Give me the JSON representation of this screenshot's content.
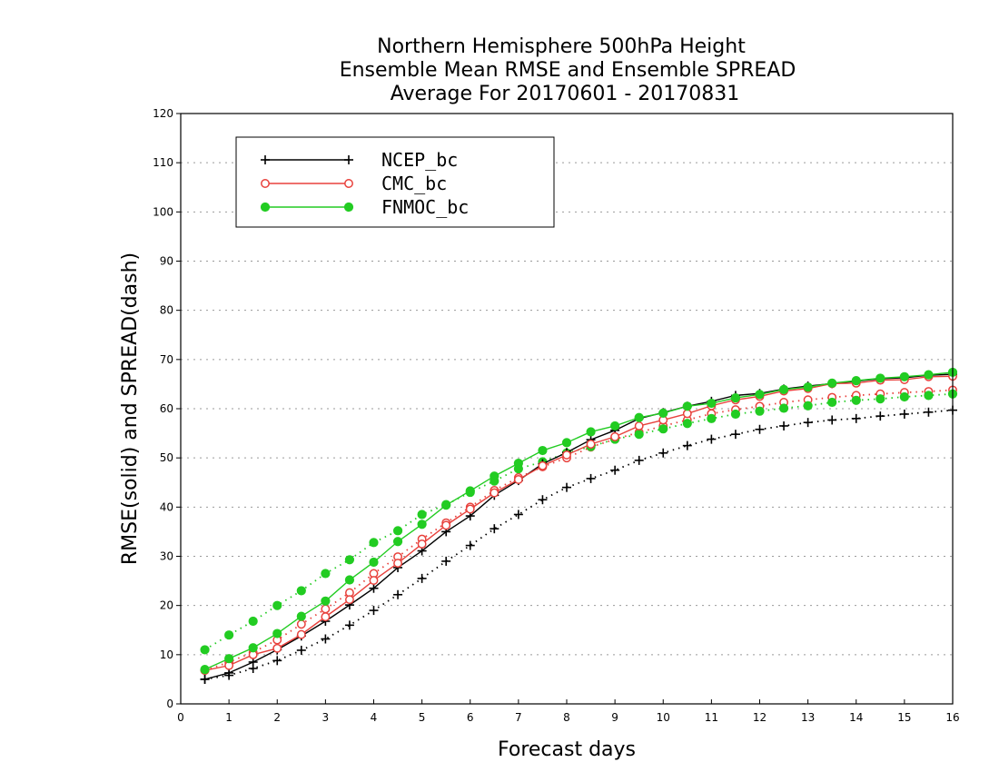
{
  "chart_data": {
    "type": "line",
    "title": [
      "Northern Hemisphere 500hPa Height",
      "Ensemble Mean RMSE and Ensemble SPREAD",
      "Average For 20170601 - 20170831"
    ],
    "xlabel": "Forecast days",
    "ylabel": "RMSE(solid) and SPREAD(dash)",
    "xlim": [
      0,
      16
    ],
    "ylim": [
      0,
      120
    ],
    "xticks": [
      "0",
      "1",
      "2",
      "3",
      "4",
      "5",
      "6",
      "7",
      "8",
      "9",
      "10",
      "11",
      "12",
      "13",
      "14",
      "15",
      "16"
    ],
    "yticks": [
      "0",
      "10",
      "20",
      "30",
      "40",
      "50",
      "60",
      "70",
      "80",
      "90",
      "100",
      "110",
      "120"
    ],
    "grid": true,
    "legend_position": "top-left",
    "x": [
      0.5,
      1,
      1.5,
      2,
      2.5,
      3,
      3.5,
      4,
      4.5,
      5,
      5.5,
      6,
      6.5,
      7,
      7.5,
      8,
      8.5,
      9,
      9.5,
      10,
      10.5,
      11,
      11.5,
      12,
      12.5,
      13,
      13.5,
      14,
      14.5,
      15,
      15.5,
      16
    ],
    "series": [
      {
        "name": "NCEP_bc",
        "color": "#000000",
        "marker": "plus",
        "rmse": [
          5.0,
          6.3,
          8.5,
          11.0,
          13.8,
          16.8,
          20.1,
          23.5,
          27.7,
          31.1,
          35.0,
          38.2,
          42.4,
          45.4,
          48.8,
          51.1,
          53.7,
          55.6,
          58.0,
          59.2,
          60.5,
          61.5,
          62.7,
          63.1,
          64.0,
          64.6,
          65.1,
          65.6,
          66.1,
          66.3,
          66.8,
          67.0
        ],
        "spread": [
          5.0,
          5.8,
          7.2,
          8.8,
          10.9,
          13.2,
          16.0,
          19.0,
          22.2,
          25.5,
          29.0,
          32.2,
          35.6,
          38.5,
          41.5,
          44.0,
          45.8,
          47.5,
          49.5,
          51.0,
          52.5,
          53.8,
          54.8,
          55.8,
          56.5,
          57.2,
          57.7,
          58.0,
          58.5,
          58.9,
          59.3,
          59.7
        ]
      },
      {
        "name": "CMC_bc",
        "color": "#e8413c",
        "marker": "circle-open",
        "rmse": [
          6.8,
          7.8,
          10.0,
          11.3,
          14.1,
          17.7,
          21.2,
          25.1,
          28.6,
          32.5,
          36.3,
          39.6,
          42.9,
          45.6,
          48.4,
          50.6,
          52.8,
          54.3,
          56.5,
          57.7,
          59.0,
          60.6,
          61.8,
          62.5,
          63.6,
          64.1,
          65.1,
          65.2,
          65.8,
          65.9,
          66.5,
          66.6
        ],
        "spread": [
          6.8,
          8.5,
          10.5,
          13.0,
          16.2,
          19.3,
          22.6,
          26.5,
          29.9,
          33.5,
          36.8,
          40.0,
          43.4,
          46.0,
          48.2,
          50.0,
          52.2,
          53.8,
          55.2,
          56.5,
          57.7,
          59.0,
          59.8,
          60.5,
          61.3,
          61.8,
          62.3,
          62.7,
          63.0,
          63.3,
          63.5,
          63.8
        ]
      },
      {
        "name": "FNMOC_bc",
        "color": "#22cc22",
        "marker": "circle-filled",
        "rmse": [
          7.0,
          9.2,
          11.4,
          14.3,
          17.8,
          20.9,
          25.2,
          28.8,
          33.0,
          36.5,
          40.4,
          43.3,
          46.3,
          48.9,
          51.5,
          53.1,
          55.3,
          56.5,
          58.2,
          59.1,
          60.5,
          61.1,
          62.2,
          62.9,
          63.9,
          64.4,
          65.2,
          65.7,
          66.2,
          66.5,
          66.9,
          67.4
        ],
        "spread": [
          11.0,
          14.0,
          16.8,
          20.0,
          23.0,
          26.5,
          29.3,
          32.8,
          35.2,
          38.5,
          40.5,
          43.0,
          45.3,
          47.8,
          49.2,
          51.0,
          52.3,
          53.8,
          54.8,
          55.9,
          57.0,
          58.0,
          58.9,
          59.5,
          60.1,
          60.6,
          61.3,
          61.7,
          62.0,
          62.4,
          62.7,
          63.0
        ]
      }
    ]
  }
}
